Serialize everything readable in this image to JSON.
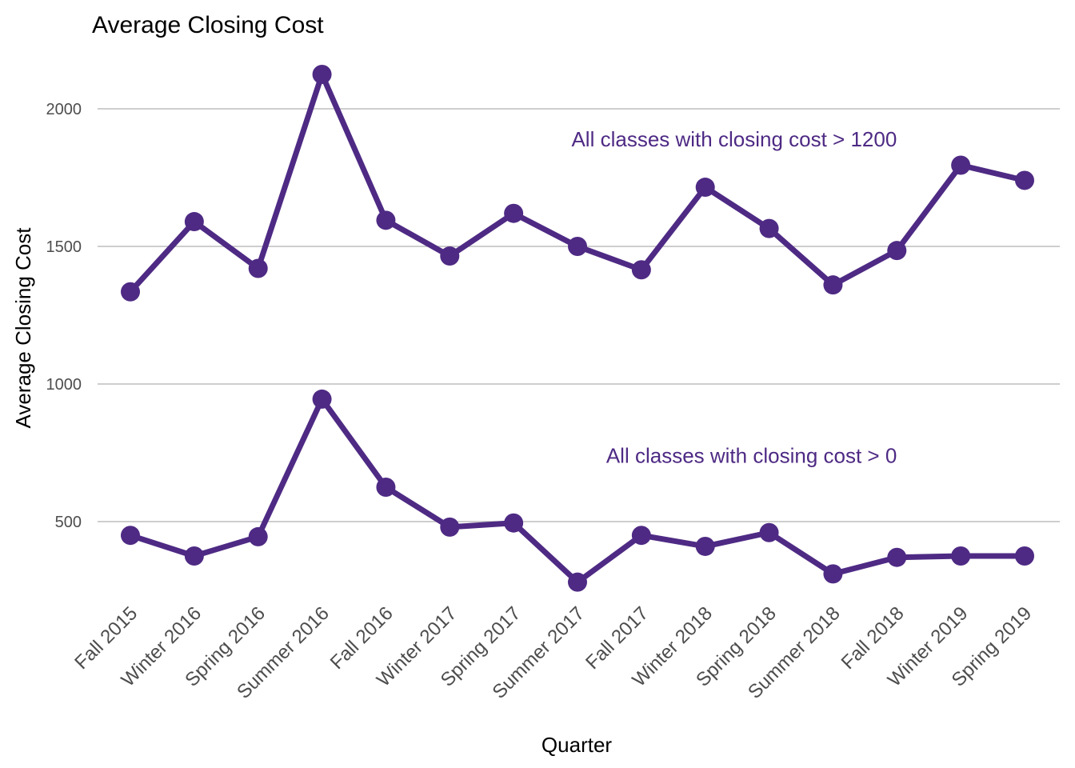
{
  "chart_data": {
    "type": "line",
    "title": "Average Closing Cost",
    "xlabel": "Quarter",
    "ylabel": "Average Closing Cost",
    "categories": [
      "Fall 2015",
      "Winter 2016",
      "Spring 2016",
      "Summer 2016",
      "Fall 2016",
      "Winter 2017",
      "Spring 2017",
      "Summer 2017",
      "Fall 2017",
      "Winter 2018",
      "Spring 2018",
      "Summer 2018",
      "Fall 2018",
      "Winter 2019",
      "Spring 2019"
    ],
    "yticks": [
      500,
      1000,
      1500,
      2000
    ],
    "ylim": [
      200,
      2200
    ],
    "grid": true,
    "color": "#4e2a84",
    "series": [
      {
        "values": [
          1335,
          1590,
          1420,
          2125,
          1595,
          1465,
          1620,
          1500,
          1415,
          1715,
          1565,
          1360,
          1485,
          1795,
          1740
        ]
      },
      {
        "values": [
          450,
          375,
          445,
          945,
          625,
          480,
          495,
          280,
          450,
          410,
          460,
          310,
          370,
          375,
          375
        ]
      }
    ],
    "annotations": [
      {
        "text": "All classes with closing cost > 1200",
        "x": "Fall 2018",
        "y": 1890
      },
      {
        "text": "All classes with closing cost > 0",
        "x": "Fall 2018",
        "y": 740
      }
    ]
  }
}
